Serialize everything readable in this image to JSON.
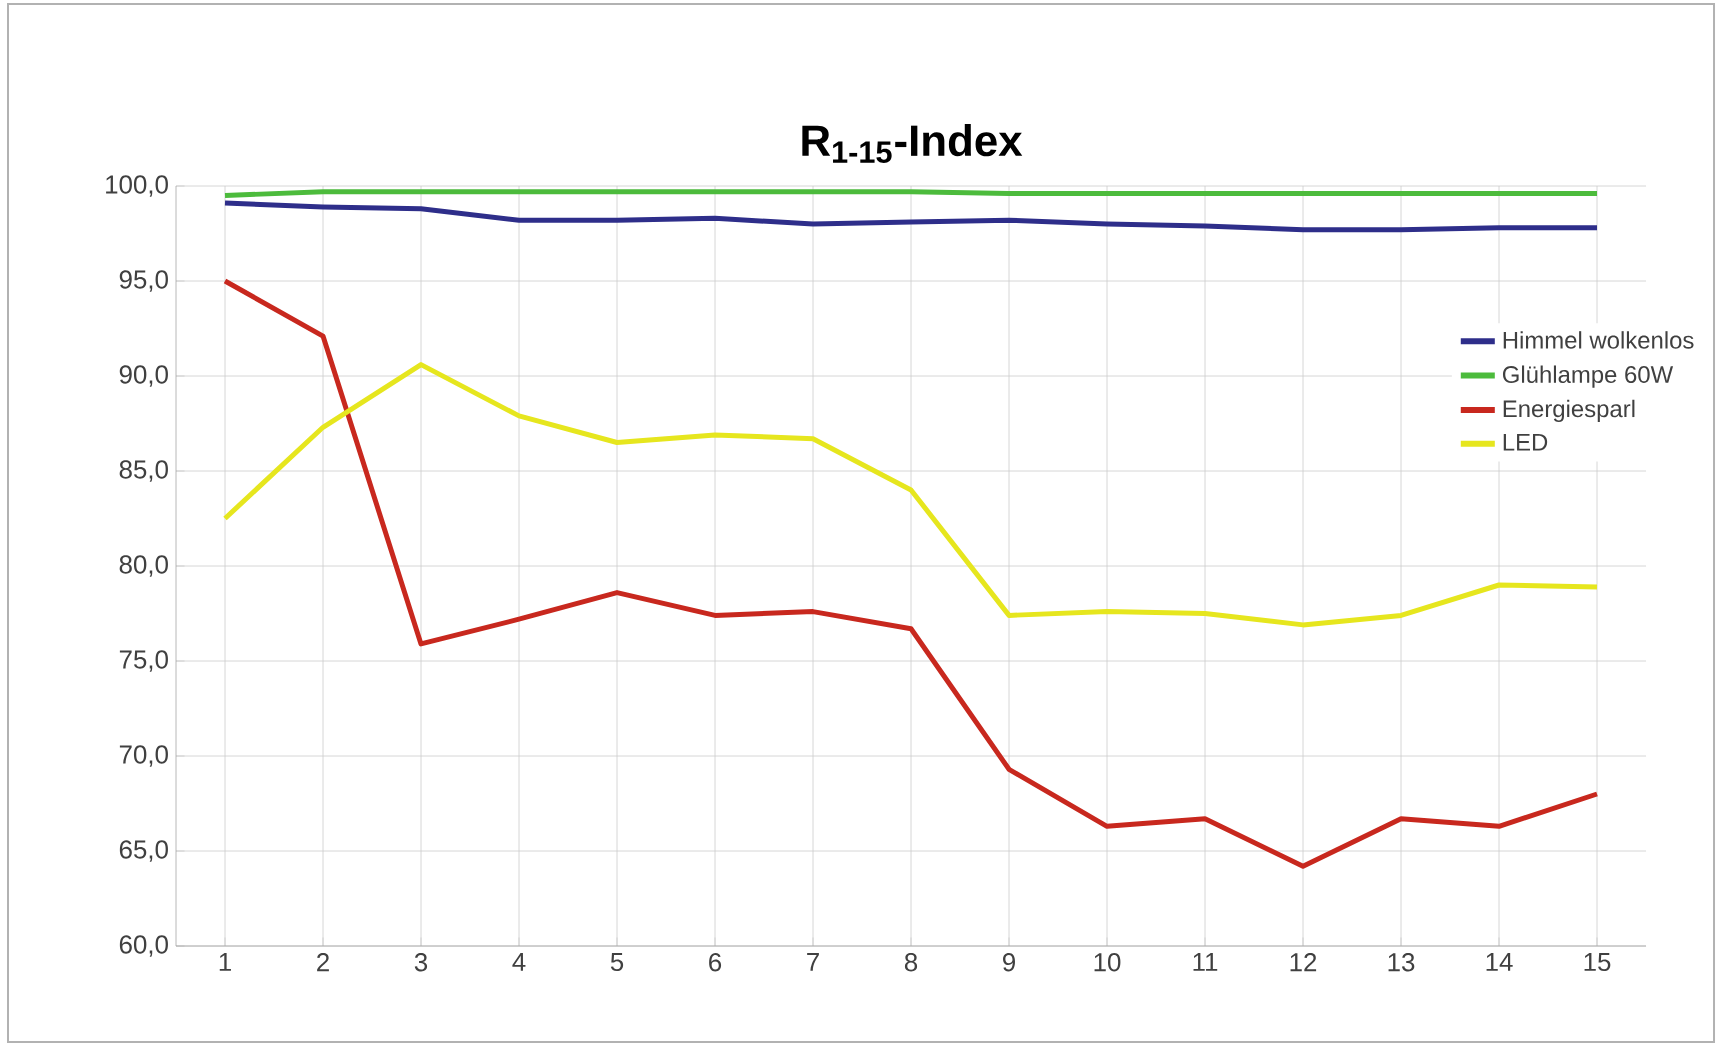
{
  "chart_data": {
    "type": "line",
    "title": "R$_{1-15}$-Index",
    "categories": [
      "1",
      "2",
      "3",
      "4",
      "5",
      "6",
      "7",
      "8",
      "9",
      "10",
      "11",
      "12",
      "13",
      "14",
      "15"
    ],
    "series": [
      {
        "name": "Himmel wolkenlos",
        "color": "#2e2e8a",
        "values": [
          99.1,
          98.9,
          98.8,
          98.2,
          98.2,
          98.3,
          98.0,
          98.1,
          98.2,
          98.0,
          97.9,
          97.7,
          97.7,
          97.8,
          97.8
        ]
      },
      {
        "name": "Glühlampe 60W",
        "color": "#4cbb3c",
        "values": [
          99.5,
          99.7,
          99.7,
          99.7,
          99.7,
          99.7,
          99.7,
          99.7,
          99.6,
          99.6,
          99.6,
          99.6,
          99.6,
          99.6,
          99.6
        ]
      },
      {
        "name": "Energiesparl",
        "color": "#c8281e",
        "values": [
          95.0,
          92.1,
          75.9,
          77.2,
          78.6,
          77.4,
          77.6,
          76.7,
          69.3,
          66.3,
          66.7,
          64.2,
          66.7,
          66.3,
          68.0
        ]
      },
      {
        "name": "LED",
        "color": "#e6e61e",
        "values": [
          82.5,
          87.3,
          90.6,
          87.9,
          86.5,
          86.9,
          86.7,
          84.0,
          77.4,
          77.6,
          77.5,
          76.9,
          77.4,
          79.0,
          78.9
        ]
      }
    ],
    "ylim": [
      60,
      100
    ],
    "yticks": [
      {
        "value": 60,
        "label": "60,0"
      },
      {
        "value": 65,
        "label": "65,0"
      },
      {
        "value": 70,
        "label": "70,0"
      },
      {
        "value": 75,
        "label": "75,0"
      },
      {
        "value": 80,
        "label": "80,0"
      },
      {
        "value": 85,
        "label": "85,0"
      },
      {
        "value": 90,
        "label": "90,0"
      },
      {
        "value": 95,
        "label": "95,0"
      },
      {
        "value": 100,
        "label": "100,0"
      }
    ],
    "grid": true,
    "legend": "right",
    "marker": "none",
    "line_style": "solid"
  }
}
